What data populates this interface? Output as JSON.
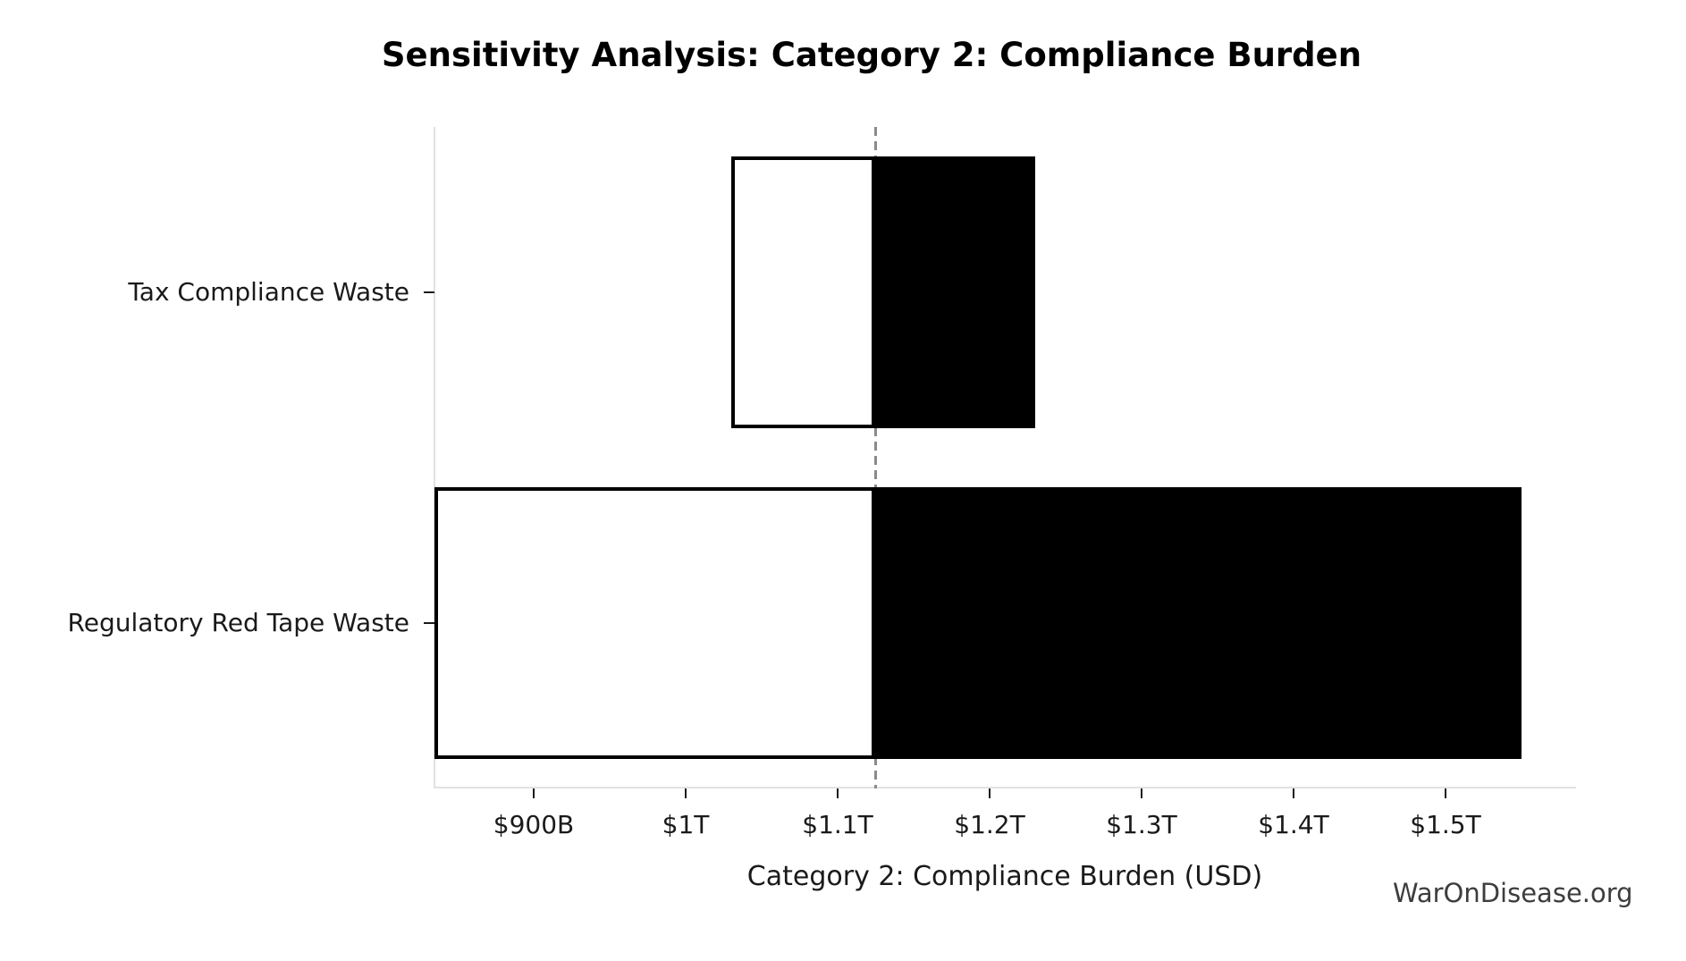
{
  "title": "Sensitivity Analysis: Category 2: Compliance Burden",
  "watermark": "WarOnDisease.org",
  "chart_data": {
    "type": "bar",
    "subtype": "tornado-sensitivity",
    "orientation": "horizontal",
    "title": "Sensitivity Analysis: Category 2: Compliance Burden",
    "xlabel": "Category 2: Compliance Burden (USD)",
    "unit": "billions USD",
    "categories": [
      "Tax Compliance Waste",
      "Regulatory Red Tape Waste"
    ],
    "baseline_value": 1125,
    "baseline_label": "$1.12T",
    "bars": [
      {
        "label": "Tax Compliance Waste",
        "low": 1030,
        "high": 1230,
        "low_label": "$1.03T",
        "high_label": "$1.23T"
      },
      {
        "label": "Regulatory Red Tape Waste",
        "low": 835,
        "high": 1550,
        "low_label": "$840B",
        "high_label": "$1.55T"
      }
    ],
    "xlim": [
      835,
      1585
    ],
    "xticks": [
      {
        "value": 900,
        "label": "$900B"
      },
      {
        "value": 1000,
        "label": "$1T"
      },
      {
        "value": 1100,
        "label": "$1.1T"
      },
      {
        "value": 1200,
        "label": "$1.2T"
      },
      {
        "value": 1300,
        "label": "$1.3T"
      },
      {
        "value": 1400,
        "label": "$1.4T"
      },
      {
        "value": 1500,
        "label": "$1.5T"
      }
    ],
    "legend": "none",
    "grid": "off",
    "colors": {
      "low_fill": "#ffffff",
      "high_fill": "#000000",
      "bar_edge": "#000000",
      "baseline_line": "#8a8a8a",
      "spine": "#e2e2e2",
      "text": "#1a1a1a",
      "watermark_text": "#3d3d3d"
    }
  }
}
